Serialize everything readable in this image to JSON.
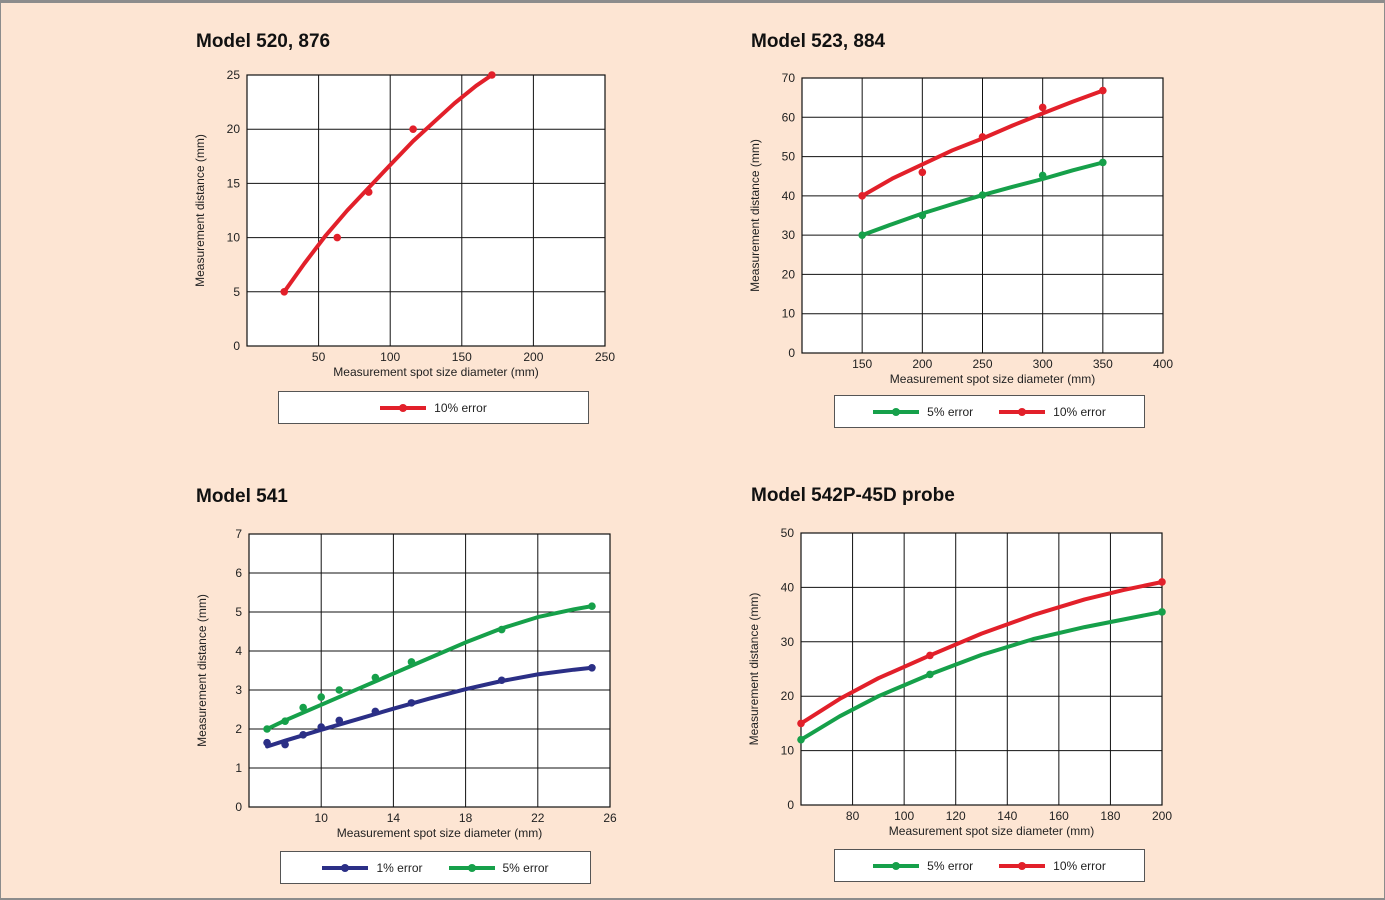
{
  "chart_data": [
    {
      "id": "c1",
      "type": "line",
      "title": "Model 520, 876",
      "xlabel": "Measurement spot size diameter (mm)",
      "ylabel": "Measurement distance (mm)",
      "xlim": [
        0,
        250
      ],
      "ylim": [
        0,
        25
      ],
      "xticks": [
        50,
        100,
        150,
        200,
        250
      ],
      "yticks": [
        0,
        5,
        10,
        15,
        20,
        25
      ],
      "grid": true,
      "legend_position": "bottom",
      "series": [
        {
          "name": "10% error",
          "color": "#e2202a",
          "points": [
            [
              26,
              5
            ],
            [
              63,
              10
            ],
            [
              85,
              14.2
            ],
            [
              116,
              20
            ],
            [
              171,
              25
            ]
          ],
          "curve": [
            [
              26,
              5
            ],
            [
              40,
              7.6
            ],
            [
              55,
              10.2
            ],
            [
              70,
              12.5
            ],
            [
              85,
              14.6
            ],
            [
              100,
              16.7
            ],
            [
              116,
              18.9
            ],
            [
              130,
              20.6
            ],
            [
              145,
              22.4
            ],
            [
              160,
              24
            ],
            [
              171,
              25
            ]
          ]
        }
      ]
    },
    {
      "id": "c2",
      "type": "line",
      "title": "Model 523, 884",
      "xlabel": "Measurement spot size diameter (mm)",
      "ylabel": "Measurement distance (mm)",
      "xlim": [
        100,
        400
      ],
      "ylim": [
        0,
        70
      ],
      "xticks": [
        150,
        200,
        250,
        300,
        350,
        400
      ],
      "yticks": [
        0,
        10,
        20,
        30,
        40,
        50,
        60,
        70
      ],
      "grid": true,
      "legend_position": "bottom",
      "series": [
        {
          "name": "5% error",
          "color": "#16a04a",
          "points": [
            [
              150,
              30
            ],
            [
              200,
              35
            ],
            [
              250,
              40.2
            ],
            [
              300,
              45.2
            ],
            [
              350,
              48.5
            ]
          ],
          "curve": [
            [
              150,
              30
            ],
            [
              175,
              32.8
            ],
            [
              200,
              35.5
            ],
            [
              225,
              37.9
            ],
            [
              250,
              40.2
            ],
            [
              275,
              42.3
            ],
            [
              300,
              44.3
            ],
            [
              325,
              46.5
            ],
            [
              350,
              48.5
            ]
          ]
        },
        {
          "name": "10% error",
          "color": "#e2202a",
          "points": [
            [
              150,
              40
            ],
            [
              200,
              46
            ],
            [
              250,
              55
            ],
            [
              300,
              62.5
            ],
            [
              350,
              66.8
            ]
          ],
          "curve": [
            [
              150,
              40
            ],
            [
              175,
              44.4
            ],
            [
              200,
              48
            ],
            [
              225,
              51.6
            ],
            [
              250,
              54.6
            ],
            [
              275,
              57.9
            ],
            [
              300,
              61
            ],
            [
              325,
              64
            ],
            [
              350,
              66.8
            ]
          ]
        }
      ]
    },
    {
      "id": "c3",
      "type": "line",
      "title": "Model 541",
      "xlabel": "Measurement spot size diameter (mm)",
      "ylabel": "Measurement distance (mm)",
      "xlim": [
        6,
        26
      ],
      "ylim": [
        0,
        7
      ],
      "xticks": [
        10,
        14,
        18,
        22,
        26
      ],
      "yticks": [
        0,
        1,
        2,
        3,
        4,
        5,
        6,
        7
      ],
      "grid": true,
      "legend_position": "bottom",
      "series": [
        {
          "name": "1% error",
          "color": "#2b2f86",
          "points": [
            [
              7,
              1.65
            ],
            [
              8,
              1.6
            ],
            [
              9,
              1.85
            ],
            [
              10,
              2.05
            ],
            [
              11,
              2.22
            ],
            [
              13,
              2.45
            ],
            [
              15,
              2.67
            ],
            [
              20,
              3.25
            ],
            [
              25,
              3.57
            ]
          ],
          "curve": [
            [
              7,
              1.55
            ],
            [
              8,
              1.7
            ],
            [
              10,
              1.98
            ],
            [
              12,
              2.25
            ],
            [
              14,
              2.52
            ],
            [
              16,
              2.78
            ],
            [
              18,
              3.02
            ],
            [
              20,
              3.23
            ],
            [
              22,
              3.4
            ],
            [
              24,
              3.52
            ],
            [
              25,
              3.57
            ]
          ]
        },
        {
          "name": "5% error",
          "color": "#16a04a",
          "points": [
            [
              7,
              2
            ],
            [
              8,
              2.2
            ],
            [
              9,
              2.55
            ],
            [
              10,
              2.82
            ],
            [
              11,
              3
            ],
            [
              13,
              3.32
            ],
            [
              15,
              3.72
            ],
            [
              20,
              4.55
            ],
            [
              25,
              5.15
            ]
          ],
          "curve": [
            [
              7,
              2
            ],
            [
              8,
              2.22
            ],
            [
              10,
              2.62
            ],
            [
              12,
              3.02
            ],
            [
              14,
              3.42
            ],
            [
              16,
              3.82
            ],
            [
              18,
              4.22
            ],
            [
              20,
              4.58
            ],
            [
              22,
              4.87
            ],
            [
              24,
              5.07
            ],
            [
              25,
              5.15
            ]
          ]
        }
      ]
    },
    {
      "id": "c4",
      "type": "line",
      "title": "Model 542P-45D probe",
      "xlabel": "Measurement spot size diameter (mm)",
      "ylabel": "Measurement distance (mm)",
      "xlim": [
        60,
        200
      ],
      "ylim": [
        0,
        50
      ],
      "xticks": [
        80,
        100,
        120,
        140,
        160,
        180,
        200
      ],
      "yticks": [
        0,
        10,
        20,
        30,
        40,
        50
      ],
      "grid": true,
      "legend_position": "bottom",
      "series": [
        {
          "name": "5% error",
          "color": "#16a04a",
          "points": [
            [
              60,
              12
            ],
            [
              110,
              24
            ],
            [
              200,
              35.5
            ]
          ],
          "curve": [
            [
              60,
              12
            ],
            [
              75,
              16.3
            ],
            [
              90,
              20
            ],
            [
              110,
              24
            ],
            [
              130,
              27.6
            ],
            [
              150,
              30.5
            ],
            [
              170,
              32.7
            ],
            [
              185,
              34.1
            ],
            [
              200,
              35.5
            ]
          ]
        },
        {
          "name": "10% error",
          "color": "#e2202a",
          "points": [
            [
              60,
              15
            ],
            [
              110,
              27.5
            ],
            [
              200,
              41
            ]
          ],
          "curve": [
            [
              60,
              15
            ],
            [
              75,
              19.5
            ],
            [
              90,
              23.3
            ],
            [
              110,
              27.5
            ],
            [
              130,
              31.5
            ],
            [
              150,
              34.9
            ],
            [
              170,
              37.8
            ],
            [
              185,
              39.5
            ],
            [
              200,
              41
            ]
          ]
        }
      ]
    }
  ]
}
